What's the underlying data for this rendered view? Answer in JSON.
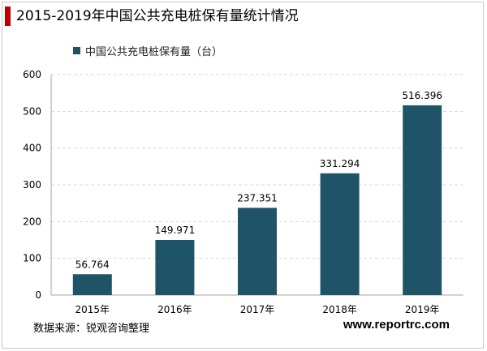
{
  "colors": {
    "accent": "#c00000",
    "bar": "#1f5468",
    "grid": "#d9d9d9",
    "axis": "#a6a6a6"
  },
  "header": {
    "title": "2015-2019年中国公共充电桩保有量统计情况"
  },
  "chart_data": {
    "type": "bar",
    "title": "2015-2019年中国公共充电桩保有量统计情况",
    "categories": [
      "2015年",
      "2016年",
      "2017年",
      "2018年",
      "2019年"
    ],
    "series": [
      {
        "name": "中国公共充电桩保有量（台）",
        "values": [
          56.764,
          149.971,
          237.351,
          331.294,
          516.396
        ],
        "labels": [
          "56.764",
          "149.971",
          "237.351",
          "331.294",
          "516.396"
        ]
      }
    ],
    "ylim": [
      0,
      600
    ],
    "yticks": [
      0,
      100,
      200,
      300,
      400,
      500,
      600
    ],
    "xlabel": "",
    "ylabel": "",
    "grid": true,
    "legend": "top-left"
  },
  "footer": {
    "source": "数据来源：锐观咨询整理",
    "website": "www.reportrc.com"
  }
}
